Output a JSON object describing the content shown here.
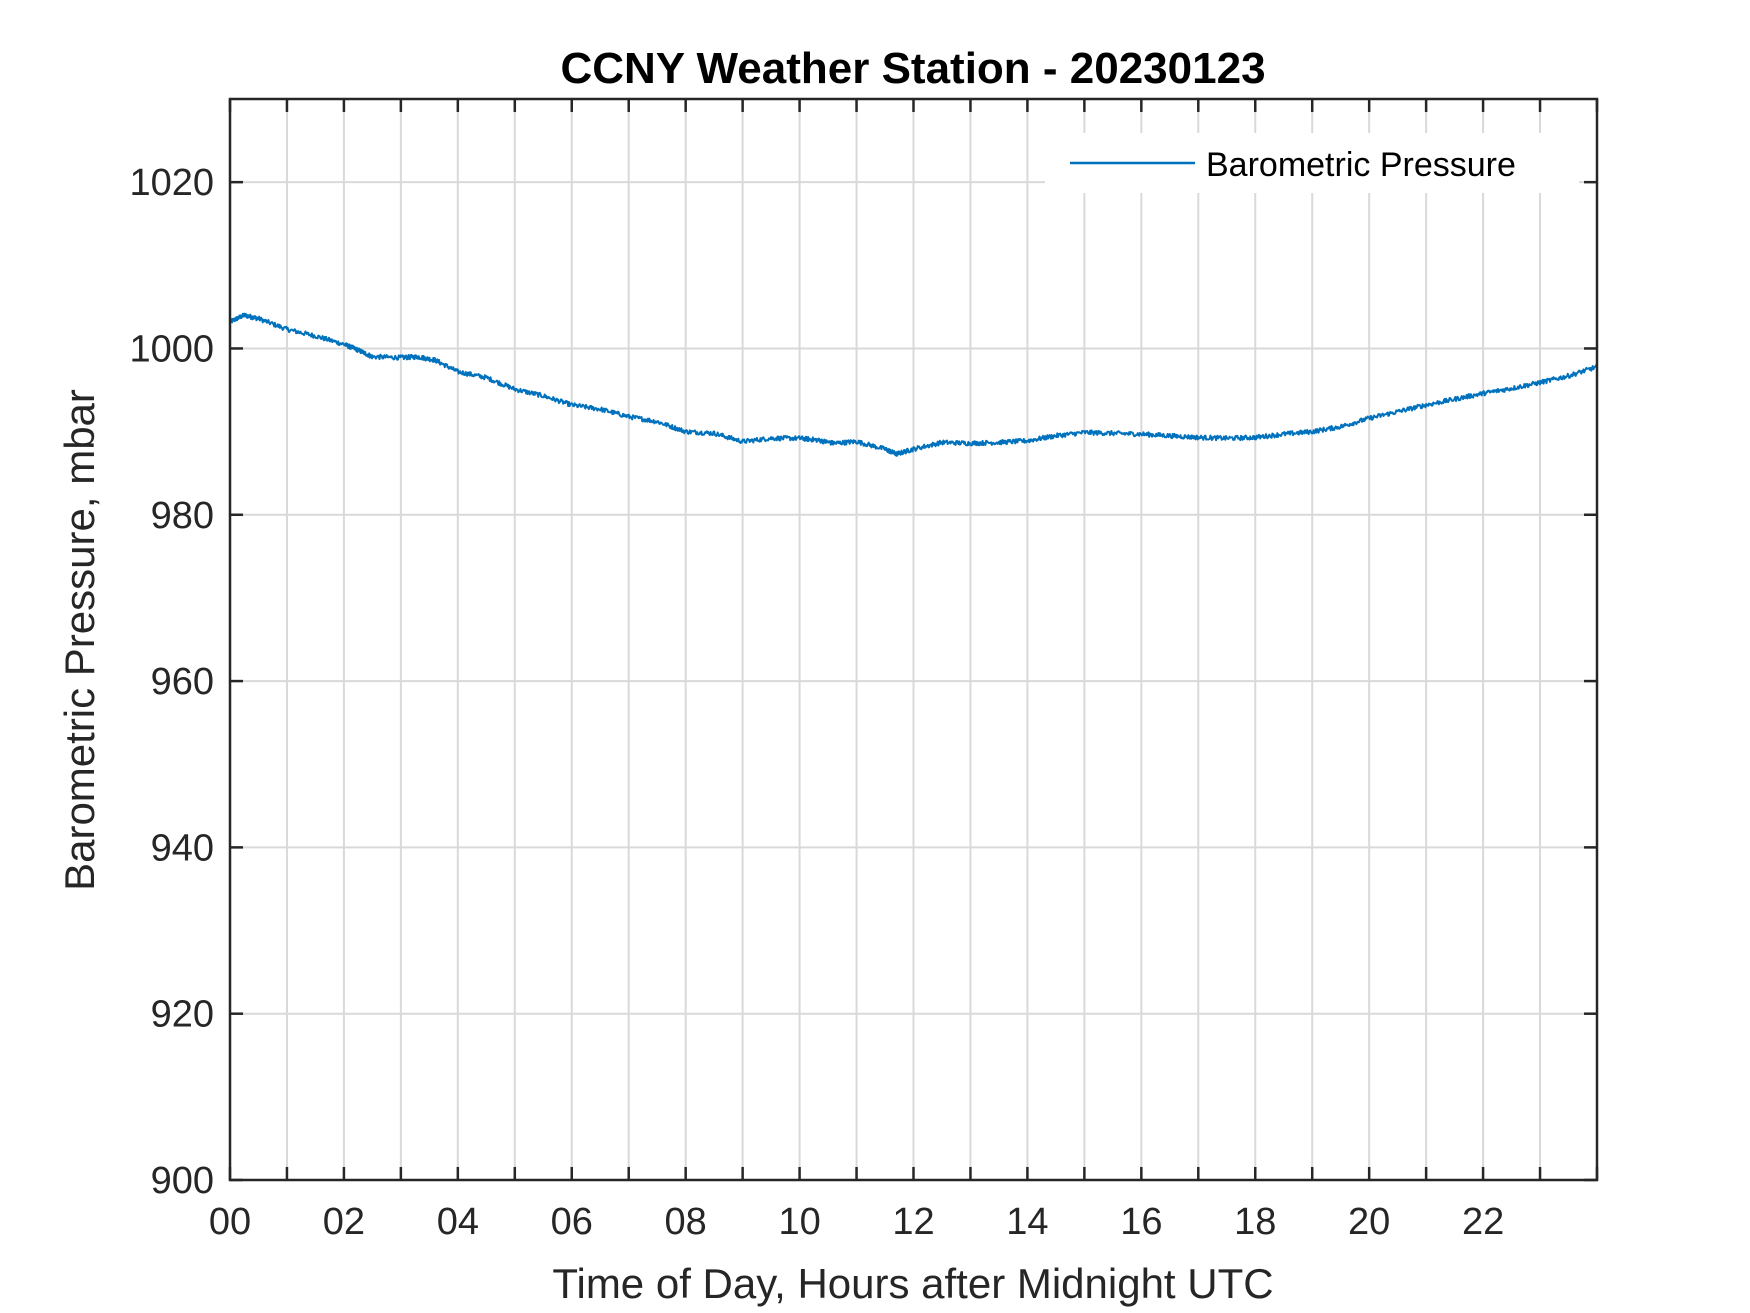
{
  "chart_data": {
    "type": "line",
    "title": "CCNY Weather Station - 20230123",
    "xlabel": "Time of Day, Hours after Midnight UTC",
    "ylabel": "Barometric Pressure, mbar",
    "xlim": [
      0,
      24
    ],
    "ylim": [
      900,
      1030
    ],
    "xticks": [
      "00",
      "02",
      "04",
      "06",
      "08",
      "10",
      "12",
      "14",
      "16",
      "18",
      "20",
      "22"
    ],
    "yticks": [
      "900",
      "920",
      "940",
      "960",
      "980",
      "1000",
      "1020"
    ],
    "grid": true,
    "grid_x_step_hours": 1,
    "legend": {
      "position": "top-right",
      "entries": [
        "Barometric Pressure"
      ]
    },
    "series": [
      {
        "name": "Barometric Pressure",
        "color": "#0072BD",
        "x": [
          0,
          0.25,
          0.5,
          1,
          1.5,
          2,
          2.25,
          2.5,
          3,
          3.3,
          3.6,
          4,
          4.5,
          5,
          5.5,
          6,
          6.5,
          7,
          7.5,
          8,
          8.5,
          9,
          9.5,
          10,
          10.3,
          10.6,
          11,
          11.5,
          11.7,
          12,
          12.5,
          13,
          13.5,
          14,
          14.5,
          15,
          15.5,
          16,
          16.5,
          17,
          17.5,
          18,
          18.5,
          19,
          19.5,
          20,
          20.5,
          21,
          21.5,
          22,
          22.5,
          23,
          23.5,
          24
        ],
        "y": [
          1003.2,
          1004.0,
          1003.6,
          1002.3,
          1001.5,
          1000.5,
          999.8,
          999.0,
          998.9,
          999.0,
          998.6,
          997.2,
          996.5,
          995.1,
          994.3,
          993.2,
          992.7,
          991.8,
          991.2,
          990.0,
          989.8,
          988.8,
          989.2,
          989.2,
          989.0,
          988.6,
          988.8,
          987.9,
          987.3,
          987.9,
          988.7,
          988.6,
          988.7,
          988.9,
          989.5,
          989.9,
          989.8,
          989.7,
          989.5,
          989.3,
          989.2,
          989.3,
          989.7,
          990.0,
          990.6,
          991.6,
          992.4,
          993.2,
          993.9,
          994.6,
          995.2,
          995.9,
          996.7,
          997.8
        ]
      }
    ]
  }
}
